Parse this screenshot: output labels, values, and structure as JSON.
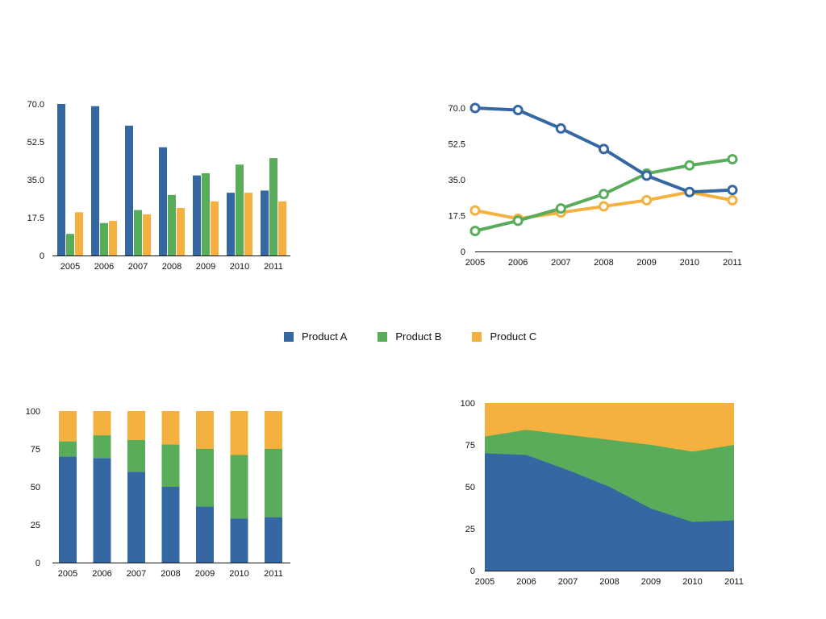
{
  "legend": [
    {
      "label": "Product A",
      "color": "#3568a3"
    },
    {
      "label": "Product B",
      "color": "#58ac5a"
    },
    {
      "label": "Product C",
      "color": "#f4b13f"
    }
  ],
  "chart_data": [
    {
      "type": "bar",
      "categories": [
        "2005",
        "2006",
        "2007",
        "2008",
        "2009",
        "2010",
        "2011"
      ],
      "series": [
        {
          "name": "Product A",
          "values": [
            70,
            69,
            60,
            50,
            37,
            29,
            30
          ]
        },
        {
          "name": "Product B",
          "values": [
            10,
            15,
            21,
            28,
            38,
            42,
            45
          ]
        },
        {
          "name": "Product C",
          "values": [
            20,
            16,
            19,
            22,
            25,
            29,
            25
          ]
        }
      ],
      "ylim": [
        0,
        70
      ],
      "yticks": [
        "0",
        "17.5",
        "35.0",
        "52.5",
        "70.0"
      ],
      "grid": false
    },
    {
      "type": "line",
      "categories": [
        "2005",
        "2006",
        "2007",
        "2008",
        "2009",
        "2010",
        "2011"
      ],
      "series": [
        {
          "name": "Product A",
          "values": [
            70,
            69,
            60,
            50,
            37,
            29,
            30
          ]
        },
        {
          "name": "Product B",
          "values": [
            10,
            15,
            21,
            28,
            38,
            42,
            45
          ]
        },
        {
          "name": "Product C",
          "values": [
            20,
            16,
            19,
            22,
            25,
            29,
            25
          ]
        }
      ],
      "ylim": [
        0,
        70
      ],
      "yticks": [
        "0",
        "17.5",
        "35.0",
        "52.5",
        "70.0"
      ],
      "grid": false
    },
    {
      "type": "bar",
      "stacked": "percent",
      "categories": [
        "2005",
        "2006",
        "2007",
        "2008",
        "2009",
        "2010",
        "2011"
      ],
      "series": [
        {
          "name": "Product A",
          "values": [
            70,
            69,
            60,
            50,
            37,
            29,
            30
          ]
        },
        {
          "name": "Product B",
          "values": [
            10,
            15,
            21,
            28,
            38,
            42,
            45
          ]
        },
        {
          "name": "Product C",
          "values": [
            20,
            16,
            19,
            22,
            25,
            29,
            25
          ]
        }
      ],
      "ylim": [
        0,
        100
      ],
      "yticks": [
        "0",
        "25",
        "50",
        "75",
        "100"
      ],
      "grid": false
    },
    {
      "type": "area",
      "stacked": "percent",
      "categories": [
        "2005",
        "2006",
        "2007",
        "2008",
        "2009",
        "2010",
        "2011"
      ],
      "series": [
        {
          "name": "Product A",
          "values": [
            70,
            69,
            60,
            50,
            37,
            29,
            30
          ]
        },
        {
          "name": "Product B",
          "values": [
            10,
            15,
            21,
            28,
            38,
            42,
            45
          ]
        },
        {
          "name": "Product C",
          "values": [
            20,
            16,
            19,
            22,
            25,
            29,
            25
          ]
        }
      ],
      "ylim": [
        0,
        100
      ],
      "yticks": [
        "0",
        "25",
        "50",
        "75",
        "100"
      ],
      "grid": false
    }
  ]
}
